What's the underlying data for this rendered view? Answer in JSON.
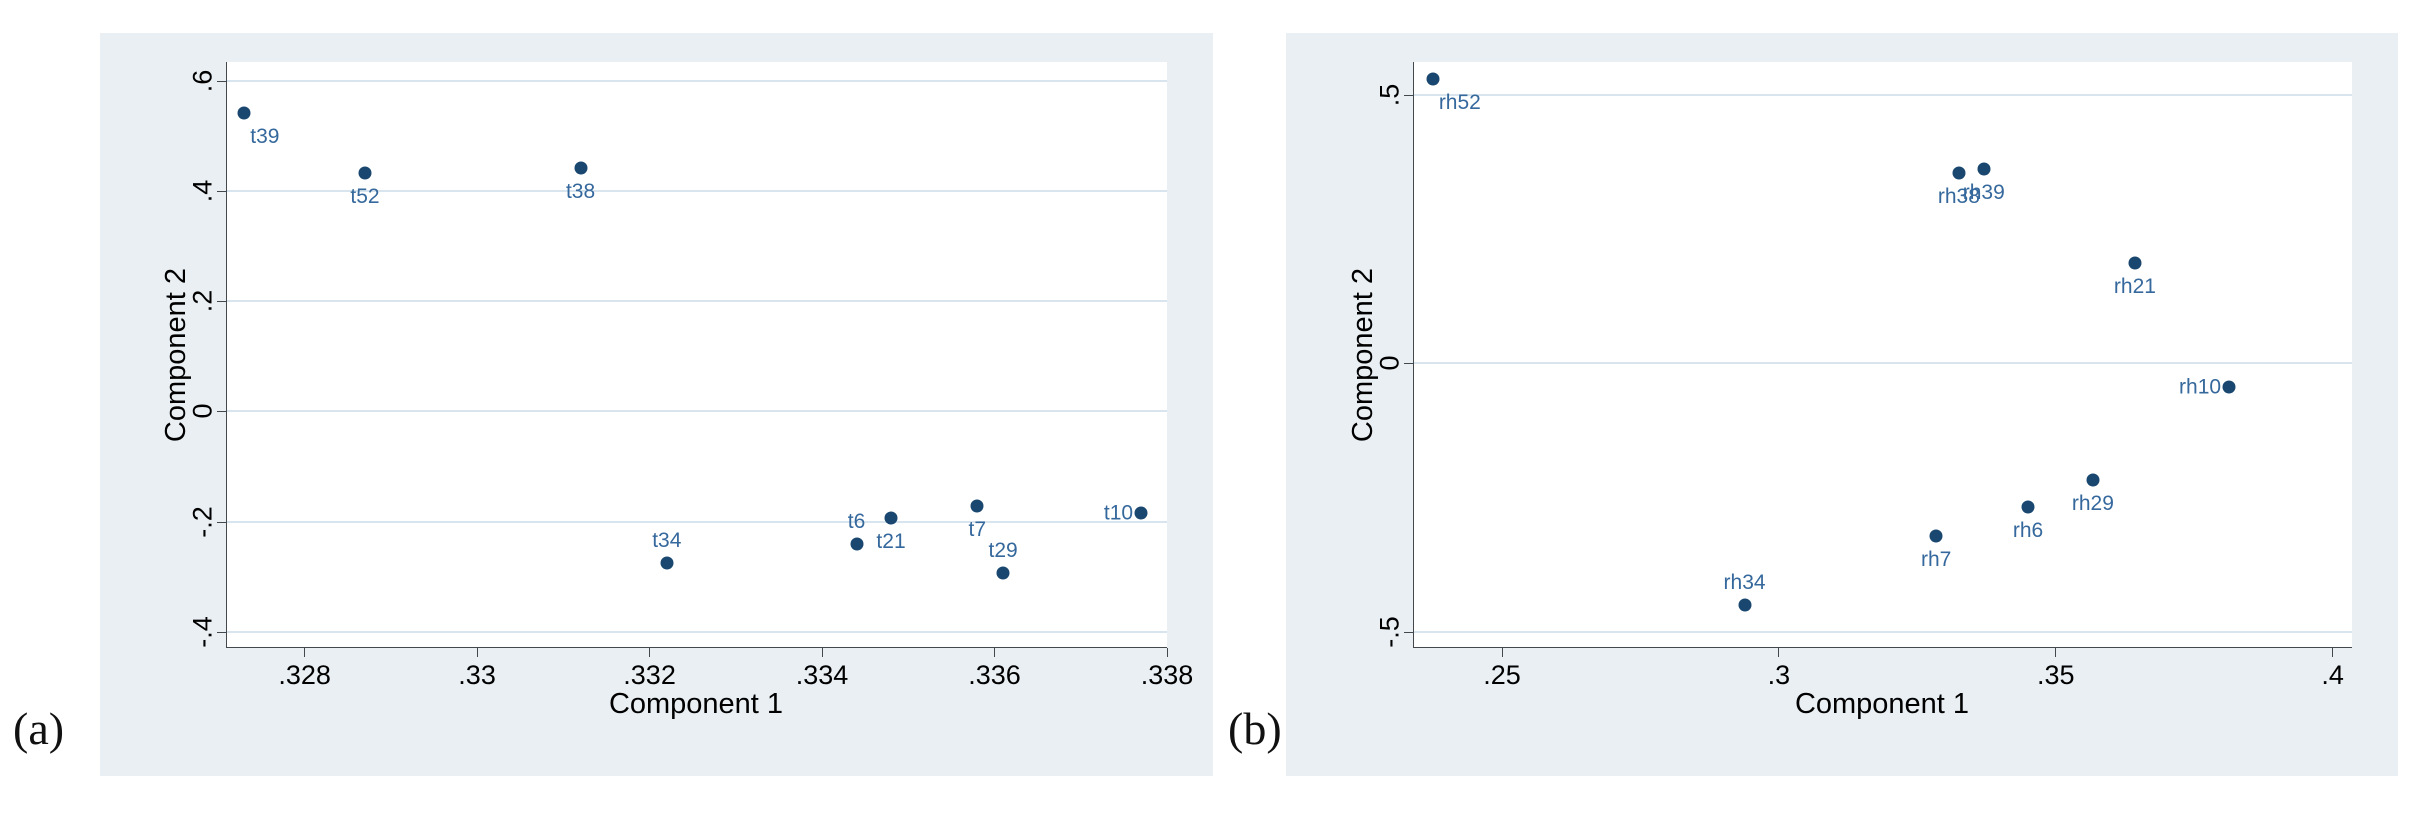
{
  "figure": {
    "description": "Two Stata-style principal component loading scatter plots",
    "panel_letters": [
      "(a)",
      "(b)"
    ]
  },
  "colors": {
    "page_background": "#ffffff",
    "panel_background": "#e9eff3",
    "plot_background": "#ffffff",
    "gridline": "#d9e5ee",
    "axis_line": "#42484c",
    "tick_label": "#000000",
    "axis_title": "#000000",
    "marker": "#1a476f",
    "marker_label": "#35689c",
    "panel_letter": "#111111"
  },
  "chart_data": [
    {
      "panel_label": "(a)",
      "type": "scatter",
      "title": "",
      "xlabel": "Component 1",
      "ylabel": "Component 2",
      "xlim": [
        0.3271,
        0.338
      ],
      "ylim": [
        -0.428,
        0.635
      ],
      "grid": "horizontal-only",
      "legend": "none",
      "xticks": [
        {
          "value": 0.328,
          "label": ".328"
        },
        {
          "value": 0.33,
          "label": ".33"
        },
        {
          "value": 0.332,
          "label": ".332"
        },
        {
          "value": 0.334,
          "label": ".334"
        },
        {
          "value": 0.336,
          "label": ".336"
        },
        {
          "value": 0.338,
          "label": ".338"
        }
      ],
      "yticks": [
        {
          "value": 0.6,
          "label": ".6"
        },
        {
          "value": 0.4,
          "label": ".4"
        },
        {
          "value": 0.2,
          "label": ".2"
        },
        {
          "value": 0.0,
          "label": "0"
        },
        {
          "value": -0.2,
          "label": "-.2"
        },
        {
          "value": -0.4,
          "label": "-.4"
        }
      ],
      "points": [
        {
          "label": "t39",
          "x": 0.3273,
          "y": 0.543,
          "label_pos": "below-right"
        },
        {
          "label": "t52",
          "x": 0.3287,
          "y": 0.433,
          "label_pos": "below"
        },
        {
          "label": "t38",
          "x": 0.3312,
          "y": 0.443,
          "label_pos": "below"
        },
        {
          "label": "t34",
          "x": 0.3322,
          "y": -0.276,
          "label_pos": "above"
        },
        {
          "label": "t6",
          "x": 0.3344,
          "y": -0.241,
          "label_pos": "above"
        },
        {
          "label": "t21",
          "x": 0.3348,
          "y": -0.194,
          "label_pos": "below"
        },
        {
          "label": "t7",
          "x": 0.3358,
          "y": -0.172,
          "label_pos": "below"
        },
        {
          "label": "t29",
          "x": 0.3361,
          "y": -0.293,
          "label_pos": "above"
        },
        {
          "label": "t10",
          "x": 0.3377,
          "y": -0.184,
          "label_pos": "left"
        }
      ]
    },
    {
      "panel_label": "(b)",
      "type": "scatter",
      "title": "",
      "xlabel": "Component 1",
      "ylabel": "Component 2",
      "xlim": [
        0.2341,
        0.4035
      ],
      "ylim": [
        -0.5284,
        0.5615
      ],
      "grid": "horizontal-only",
      "legend": "none",
      "xticks": [
        {
          "value": 0.25,
          "label": ".25"
        },
        {
          "value": 0.3,
          "label": ".3"
        },
        {
          "value": 0.35,
          "label": ".35"
        },
        {
          "value": 0.4,
          "label": ".4"
        }
      ],
      "yticks": [
        {
          "value": 0.5,
          "label": ".5"
        },
        {
          "value": 0.0,
          "label": "0"
        },
        {
          "value": -0.5,
          "label": "-.5"
        }
      ],
      "points": [
        {
          "label": "rh52",
          "x": 0.2375,
          "y": 0.53,
          "label_pos": "below-right"
        },
        {
          "label": "rh38",
          "x": 0.3325,
          "y": 0.354,
          "label_pos": "below"
        },
        {
          "label": "rh39",
          "x": 0.337,
          "y": 0.363,
          "label_pos": "below"
        },
        {
          "label": "rh21",
          "x": 0.3643,
          "y": 0.187,
          "label_pos": "below"
        },
        {
          "label": "rh10",
          "x": 0.3813,
          "y": -0.044,
          "label_pos": "left"
        },
        {
          "label": "rh29",
          "x": 0.3567,
          "y": -0.218,
          "label_pos": "below"
        },
        {
          "label": "rh6",
          "x": 0.345,
          "y": -0.267,
          "label_pos": "below"
        },
        {
          "label": "rh7",
          "x": 0.3284,
          "y": -0.322,
          "label_pos": "below"
        },
        {
          "label": "rh34",
          "x": 0.2938,
          "y": -0.45,
          "label_pos": "above"
        }
      ]
    }
  ]
}
